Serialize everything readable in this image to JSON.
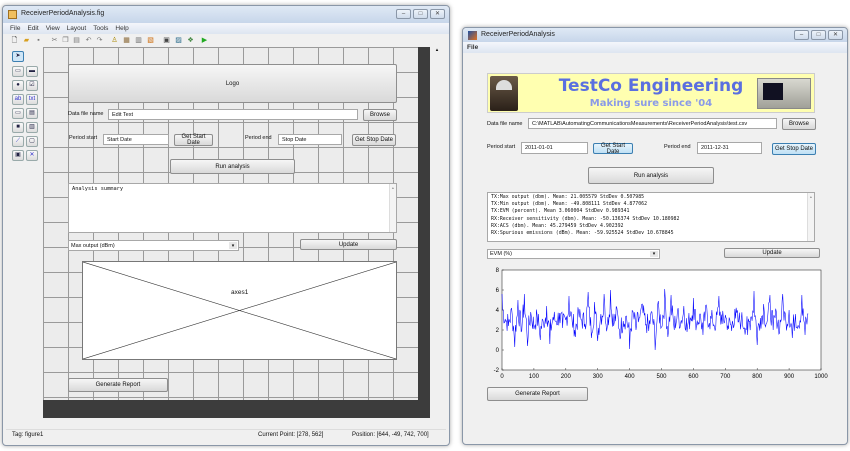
{
  "guide_window": {
    "title": "ReceiverPeriodAnalysis.fig",
    "menu": [
      "File",
      "Edit",
      "View",
      "Layout",
      "Tools",
      "Help"
    ],
    "toolbar_icons": [
      "new-icon",
      "open-icon",
      "save-icon",
      "cut-icon",
      "copy-icon",
      "paste-icon",
      "undo-icon",
      "redo-icon",
      "align-icon",
      "menu-editor-icon",
      "tab-order-icon",
      "toolbar-editor-icon",
      "editor-icon",
      "property-inspector-icon",
      "object-browser-icon",
      "run-icon"
    ],
    "palette_icons": [
      "select-icon",
      "pushbutton-icon",
      "slider-icon",
      "radiobutton-icon",
      "checkbox-icon",
      "edit-text-icon",
      "static-text-icon",
      "popup-menu-icon",
      "listbox-icon",
      "toggle-button-icon",
      "table-icon",
      "axes-icon",
      "panel-icon",
      "button-group-icon",
      "activex-icon"
    ],
    "logo_label": "Logo",
    "data_file_label": "Data file name",
    "data_file_value": "Edit Text",
    "browse": "Browse",
    "period_start_label": "Period start",
    "start_value": "Start Date",
    "get_start": "Get Start Date",
    "period_end_label": "Period end",
    "stop_value": "Stop Date",
    "get_stop": "Get Stop Date",
    "run": "Run analysis",
    "summary": "Analysis summary",
    "popup_value": "Max output (dBm)",
    "update": "Update",
    "axes_label": "axes1",
    "report": "Generate Report",
    "status": {
      "tag": "Tag: figure1",
      "current_point": "Current Point:  [278, 562]",
      "position": "Position: [644, -49, 742, 700]"
    }
  },
  "app_window": {
    "title": "ReceiverPeriodAnalysis",
    "menu": [
      "File"
    ],
    "logo": {
      "title": "TestCo Engineering",
      "subtitle": "Making sure since '04",
      "bg": "#ffffb0",
      "title_color": "#5a6fe0",
      "subtitle_color": "#8a9ae8"
    },
    "data_file_label": "Data file name",
    "data_file_value": "C:\\MATLAB\\AutomatingCommunicationsMeasurements\\ReceiverPeriodAnalysis\\test.csv",
    "browse": "Browse",
    "period_start_label": "Period start",
    "start_value": "2011-01-01",
    "get_start": "Get Start Date",
    "period_end_label": "Period end",
    "stop_value": "2011-12-31",
    "get_stop": "Get Stop Date",
    "run": "Run analysis",
    "summary_lines": [
      "TX:Max output (dbm). Mean:  21.005579 StdDev 0.507985",
      "TX:Min output (dbm). Mean: -49.808111 StdDev 4.877062",
      "TX:EVM (percent).    Mean    3.060004 StdDev 0.989341",
      "RX:Receiver sensitivity (dbm). Mean: -50.136374 StdDev 10.180982",
      "RX:ACS (dbm).                  Mean: 45.279459 StdDev 4.902392",
      "RX:Spurious emissions (dBm).   Mean: -59.925524 StdDev 10.678845"
    ],
    "popup_value": "EVM (%)",
    "update": "Update",
    "report": "Generate Report"
  },
  "chart_data": {
    "type": "line",
    "xlim": [
      0,
      1000
    ],
    "ylim": [
      -2,
      8
    ],
    "xticks": [
      0,
      100,
      200,
      300,
      400,
      500,
      600,
      700,
      800,
      900,
      1000
    ],
    "yticks": [
      -2,
      0,
      2,
      4,
      6,
      8
    ],
    "line_color": "#0000ff",
    "x_step": 10,
    "values": [
      5.6,
      3.1,
      2.4,
      4.2,
      0.3,
      5.0,
      1.8,
      5.6,
      0.4,
      3.8,
      2.1,
      3.5,
      1.0,
      2.7,
      4.4,
      0.6,
      3.3,
      2.9,
      3.7,
      2.2,
      3.0,
      5.4,
      2.8,
      1.3,
      3.9,
      3.0,
      2.6,
      5.8,
      1.2,
      4.8,
      0.9,
      3.6,
      5.6,
      2.3,
      6.0,
      2.4,
      4.2,
      1.1,
      2.9,
      3.4,
      0.1,
      3.9,
      2.0,
      3.2,
      4.6,
      2.5,
      1.9,
      3.8,
      0.0,
      4.9,
      2.3,
      6.1,
      1.3,
      5.5,
      2.0,
      3.9,
      2.7,
      4.4,
      1.8,
      3.2,
      5.2,
      2.5,
      3.6,
      1.5,
      4.5,
      2.7,
      3.0,
      2.2,
      5.4,
      2.6,
      3.5,
      2.1,
      1.9,
      4.1,
      2.8,
      3.0,
      2.2,
      1.5,
      3.3,
      5.9,
      0.5,
      3.2,
      4.6,
      2.7,
      5.5,
      2.0,
      3.8,
      1.7,
      5.6,
      2.8,
      4.0,
      1.2,
      3.6,
      2.4,
      5.5,
      1.5,
      3.6
    ]
  }
}
